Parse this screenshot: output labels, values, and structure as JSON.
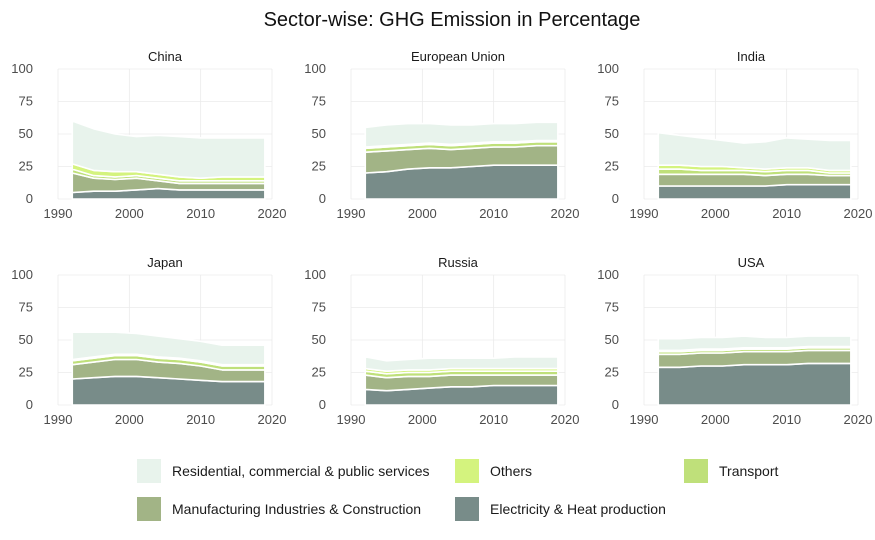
{
  "chart_data": {
    "type": "area",
    "stacked": true,
    "title": "Sector-wise: GHG Emission in Percentage",
    "x_ticks": [
      1990,
      2000,
      2010,
      2020
    ],
    "y_ticks": [
      0,
      25,
      50,
      75,
      100
    ],
    "xlim": [
      1990,
      2020
    ],
    "ylim": [
      0,
      100
    ],
    "legend_position": "bottom",
    "grid": true,
    "x": [
      1992,
      1995,
      1998,
      2001,
      2004,
      2007,
      2010,
      2013,
      2016,
      2019
    ],
    "series_meta": [
      {
        "key": "electricity",
        "name": "Electricity & Heat production",
        "color": "#788c89"
      },
      {
        "key": "manufacturing",
        "name": "Manufacturing Industries & Construction",
        "color": "#a2b486"
      },
      {
        "key": "transport",
        "name": "Transport",
        "color": "#bfe07a"
      },
      {
        "key": "others",
        "name": "Others",
        "color": "#d4f37e"
      },
      {
        "key": "residential",
        "name": "Residential, commercial & public services",
        "color": "#e8f3ec"
      }
    ],
    "legend_order": [
      "residential",
      "others",
      "transport",
      "manufacturing",
      "electricity"
    ],
    "facets": [
      {
        "name": "China",
        "electricity": [
          5,
          6,
          6,
          7,
          8,
          7,
          7,
          7,
          7,
          7
        ],
        "manufacturing": [
          15,
          10,
          9,
          9,
          6,
          5,
          5,
          5,
          5,
          5
        ],
        "transport": [
          3,
          2,
          2,
          2,
          2,
          2,
          2,
          2,
          2,
          2
        ],
        "others": [
          4,
          4,
          4,
          3,
          3,
          3,
          2,
          3,
          3,
          3
        ],
        "residential": [
          33,
          32,
          29,
          27,
          30,
          31,
          31,
          30,
          30,
          30
        ]
      },
      {
        "name": "European Union",
        "electricity": [
          20,
          21,
          23,
          24,
          24,
          25,
          26,
          26,
          26,
          26
        ],
        "manufacturing": [
          16,
          16,
          15,
          15,
          14,
          14,
          14,
          14,
          15,
          15
        ],
        "transport": [
          3,
          3,
          3,
          3,
          3,
          3,
          3,
          3,
          3,
          3
        ],
        "others": [
          1,
          1,
          1,
          1,
          1,
          1,
          1,
          1,
          1,
          1
        ],
        "residential": [
          15,
          16,
          16,
          15,
          15,
          14,
          14,
          14,
          14,
          14
        ]
      },
      {
        "name": "India",
        "electricity": [
          10,
          10,
          10,
          10,
          10,
          10,
          11,
          11,
          11,
          11
        ],
        "manufacturing": [
          9,
          9,
          9,
          9,
          9,
          8,
          8,
          8,
          7,
          7
        ],
        "transport": [
          4,
          4,
          3,
          3,
          3,
          3,
          3,
          3,
          2,
          2
        ],
        "others": [
          3,
          3,
          3,
          3,
          2,
          2,
          2,
          2,
          2,
          2
        ],
        "residential": [
          25,
          23,
          22,
          20,
          19,
          21,
          23,
          22,
          23,
          23
        ]
      },
      {
        "name": "Japan",
        "electricity": [
          20,
          21,
          22,
          22,
          21,
          20,
          19,
          18,
          18,
          18
        ],
        "manufacturing": [
          11,
          12,
          13,
          13,
          12,
          12,
          11,
          9,
          9,
          9
        ],
        "transport": [
          3,
          3,
          3,
          3,
          3,
          3,
          3,
          3,
          3,
          3
        ],
        "others": [
          1,
          1,
          1,
          1,
          1,
          1,
          1,
          1,
          1,
          1
        ],
        "residential": [
          21,
          19,
          17,
          16,
          16,
          15,
          15,
          15,
          15,
          15
        ]
      },
      {
        "name": "Russia",
        "electricity": [
          12,
          11,
          12,
          13,
          14,
          14,
          15,
          15,
          15,
          15
        ],
        "manufacturing": [
          11,
          10,
          10,
          9,
          9,
          9,
          8,
          8,
          8,
          8
        ],
        "transport": [
          3,
          3,
          3,
          3,
          3,
          3,
          3,
          3,
          3,
          3
        ],
        "others": [
          2,
          2,
          2,
          2,
          2,
          2,
          2,
          2,
          2,
          2
        ],
        "residential": [
          9,
          8,
          8,
          9,
          8,
          8,
          8,
          9,
          9,
          9
        ]
      },
      {
        "name": "USA",
        "electricity": [
          29,
          29,
          30,
          30,
          31,
          31,
          31,
          32,
          32,
          32
        ],
        "manufacturing": [
          10,
          10,
          10,
          10,
          10,
          10,
          10,
          10,
          10,
          10
        ],
        "transport": [
          2,
          2,
          2,
          2,
          2,
          2,
          2,
          2,
          2,
          2
        ],
        "others": [
          1,
          1,
          1,
          1,
          1,
          1,
          1,
          1,
          1,
          1
        ],
        "residential": [
          9,
          9,
          9,
          9,
          9,
          8,
          8,
          8,
          8,
          8
        ]
      }
    ]
  }
}
